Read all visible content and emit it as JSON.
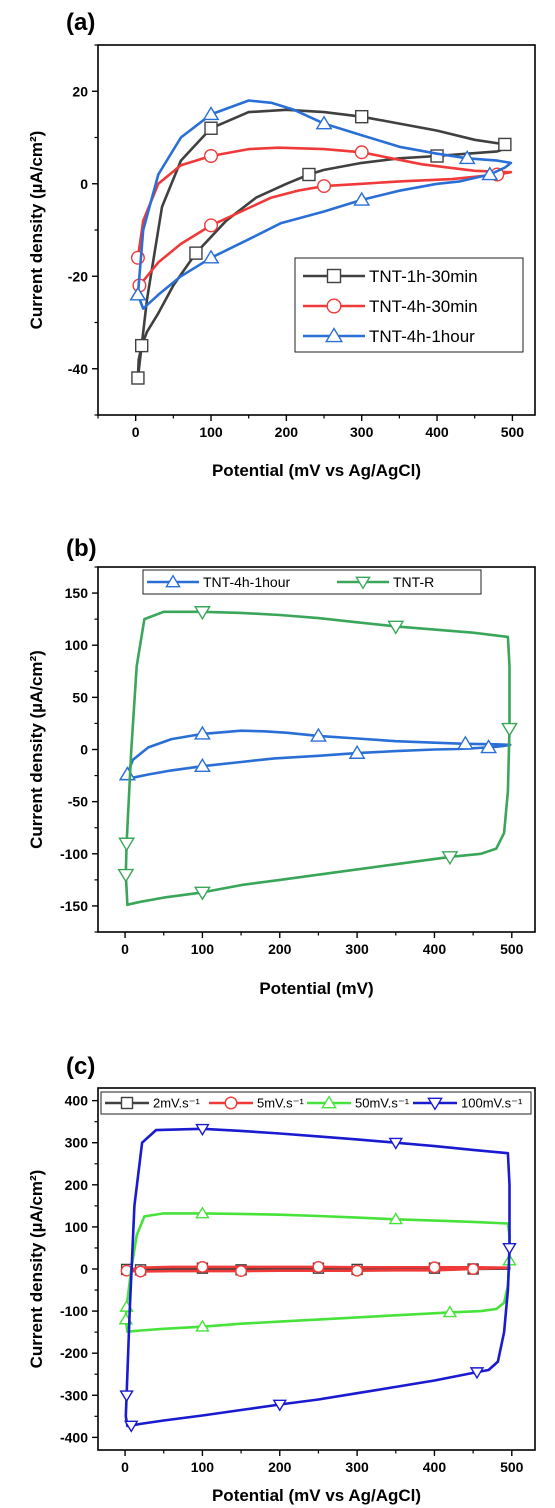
{
  "chart_data": [
    {
      "panel": "(a)",
      "type": "line",
      "xlabel": "Potential (mV vs Ag/AgCl)",
      "ylabel": "Current density (µA/cm²)",
      "xlim": [
        -50,
        530
      ],
      "ylim": [
        -50,
        30
      ],
      "xticks": [
        0,
        100,
        200,
        300,
        400,
        500
      ],
      "yticks": [
        -40,
        -20,
        0,
        20
      ],
      "legend_position": "bottom-right",
      "series": [
        {
          "name": "TNT-1h-30min",
          "color": "#404040",
          "marker": "square",
          "x": [
            3,
            15,
            35,
            60,
            100,
            150,
            200,
            250,
            300,
            350,
            400,
            450,
            490,
            497,
            480,
            440,
            400,
            350,
            300,
            250,
            230,
            200,
            160,
            120,
            80,
            50,
            30,
            15,
            8,
            4,
            3
          ],
          "y": [
            -42,
            -25,
            -5,
            5,
            12,
            15.5,
            16,
            15.5,
            14.5,
            13,
            11.5,
            9.5,
            8.5,
            8,
            7,
            6.5,
            6,
            5.5,
            4.5,
            3,
            2,
            0,
            -3,
            -8,
            -15,
            -22,
            -28,
            -32,
            -35,
            -38,
            -42
          ]
        },
        {
          "name": "TNT-4h-30min",
          "color": "#f03a3a",
          "marker": "circle",
          "x": [
            3,
            10,
            30,
            60,
            100,
            150,
            190,
            250,
            300,
            380,
            450,
            498,
            480,
            420,
            350,
            300,
            250,
            215,
            180,
            140,
            100,
            60,
            30,
            15,
            5
          ],
          "y": [
            -16,
            -8,
            0,
            4,
            6,
            7.5,
            7.8,
            7.5,
            6.8,
            4.2,
            2.8,
            2.5,
            2,
            1,
            0.5,
            0,
            -0.5,
            -1.5,
            -3,
            -6,
            -9,
            -13,
            -17,
            -20,
            -22
          ]
        },
        {
          "name": "TNT-4h-1hour",
          "color": "#2a6fd6",
          "marker": "triangle-up",
          "x": [
            3,
            10,
            30,
            60,
            100,
            150,
            180,
            210,
            250,
            300,
            350,
            400,
            440,
            480,
            498,
            490,
            470,
            430,
            400,
            350,
            300,
            250,
            193,
            150,
            100,
            60,
            30,
            10,
            3
          ],
          "y": [
            -24,
            -10,
            2,
            10,
            15,
            18,
            17.5,
            16,
            13,
            10.5,
            8,
            6.5,
            5.5,
            5,
            4.5,
            3.5,
            2,
            0.5,
            0,
            -1.5,
            -3.5,
            -6,
            -8.5,
            -12,
            -16,
            -20,
            -24,
            -27,
            -24
          ]
        }
      ]
    },
    {
      "panel": "(b)",
      "type": "line",
      "xlabel": "Potential (mV)",
      "ylabel": "Current density (µA/cm²)",
      "xlim": [
        -35,
        530
      ],
      "ylim": [
        -175,
        175
      ],
      "xticks": [
        0,
        100,
        200,
        300,
        400,
        500
      ],
      "yticks": [
        -150,
        -100,
        -50,
        0,
        50,
        100,
        150
      ],
      "legend_position": "top",
      "series": [
        {
          "name": "TNT-4h-1hour",
          "color": "#2a6fd6",
          "marker": "triangle-up",
          "x": [
            3,
            10,
            30,
            60,
            100,
            150,
            180,
            210,
            250,
            300,
            350,
            400,
            440,
            480,
            498,
            490,
            470,
            430,
            400,
            350,
            300,
            250,
            193,
            150,
            100,
            60,
            30,
            10,
            3
          ],
          "y": [
            -24,
            -10,
            2,
            10,
            15,
            18,
            17.5,
            16,
            13,
            10.5,
            8,
            6.5,
            5.5,
            5,
            4.5,
            3.5,
            2,
            0.5,
            0,
            -1.5,
            -3.5,
            -6,
            -8.5,
            -12,
            -16,
            -20,
            -24,
            -27,
            -24
          ]
        },
        {
          "name": "TNT-R",
          "color": "#3aa65a",
          "marker": "triangle-down",
          "x": [
            2,
            8,
            15,
            25,
            50,
            100,
            150,
            200,
            250,
            300,
            350,
            400,
            450,
            495,
            497,
            497,
            495,
            490,
            480,
            460,
            420,
            350,
            270,
            200,
            150,
            100,
            50,
            20,
            8,
            3,
            1,
            2
          ],
          "y": [
            -90,
            0,
            80,
            125,
            132,
            132,
            131,
            129,
            126,
            122,
            118,
            115,
            112,
            108,
            80,
            20,
            -40,
            -80,
            -95,
            -100,
            -103,
            -110,
            -118,
            -125,
            -130,
            -137,
            -142,
            -146,
            -148,
            -149,
            -120,
            -90
          ]
        }
      ]
    },
    {
      "panel": "(c)",
      "type": "line",
      "xlabel": "Potential (mV vs Ag/AgCl)",
      "ylabel": "Current density (µA/cm²)",
      "xlim": [
        -35,
        530
      ],
      "ylim": [
        -430,
        430
      ],
      "xticks": [
        0,
        100,
        200,
        300,
        400,
        500
      ],
      "yticks": [
        -400,
        -300,
        -200,
        -100,
        0,
        100,
        200,
        300,
        400
      ],
      "legend_position": "top",
      "series": [
        {
          "name": "2mV.s⁻¹",
          "color": "#404040",
          "marker": "square",
          "x": [
            2,
            20,
            60,
            100,
            150,
            200,
            250,
            300,
            350,
            400,
            450,
            497,
            450,
            400,
            350,
            300,
            250,
            200,
            150,
            100,
            60,
            20,
            2
          ],
          "y": [
            -1,
            1,
            2,
            2,
            2,
            2,
            2,
            2,
            2,
            2,
            2,
            1,
            0,
            -1,
            -1,
            -1,
            -1,
            -1,
            -2,
            -2,
            -2,
            -2,
            -1
          ]
        },
        {
          "name": "5mV.s⁻¹",
          "color": "#f03a3a",
          "marker": "circle",
          "x": [
            2,
            20,
            60,
            100,
            150,
            200,
            250,
            300,
            350,
            400,
            450,
            497,
            450,
            400,
            350,
            300,
            250,
            200,
            150,
            100,
            60,
            20,
            2
          ],
          "y": [
            -4,
            3,
            5,
            5,
            5,
            5,
            5,
            4,
            4,
            4,
            4,
            3,
            0,
            -3,
            -3,
            -4,
            -4,
            -4,
            -5,
            -5,
            -5,
            -6,
            -4
          ]
        },
        {
          "name": "50mV.s⁻¹",
          "color": "#47e23a",
          "marker": "triangle-up",
          "x": [
            2,
            8,
            15,
            25,
            50,
            100,
            150,
            200,
            250,
            300,
            350,
            400,
            450,
            495,
            497,
            497,
            495,
            490,
            480,
            460,
            420,
            350,
            270,
            200,
            150,
            100,
            50,
            20,
            8,
            3,
            1,
            2
          ],
          "y": [
            -90,
            0,
            80,
            125,
            132,
            132,
            131,
            129,
            126,
            122,
            118,
            115,
            112,
            108,
            80,
            20,
            -40,
            -80,
            -95,
            -100,
            -103,
            -110,
            -118,
            -125,
            -130,
            -137,
            -142,
            -146,
            -148,
            -149,
            -120,
            -90
          ]
        },
        {
          "name": "100mV.s⁻¹",
          "color": "#1a1ad0",
          "marker": "triangle-down",
          "x": [
            2,
            6,
            12,
            22,
            40,
            100,
            150,
            200,
            250,
            300,
            350,
            400,
            450,
            495,
            497,
            497,
            495,
            490,
            482,
            470,
            455,
            400,
            350,
            300,
            250,
            200,
            150,
            100,
            50,
            20,
            8,
            3,
            1,
            2
          ],
          "y": [
            -300,
            -100,
            150,
            300,
            330,
            333,
            328,
            322,
            315,
            308,
            300,
            292,
            283,
            275,
            200,
            50,
            -50,
            -150,
            -220,
            -240,
            -245,
            -265,
            -280,
            -295,
            -310,
            -322,
            -335,
            -348,
            -360,
            -368,
            -372,
            -373,
            -350,
            -300
          ]
        }
      ]
    }
  ],
  "panels": {
    "a": {
      "label": "(a)"
    },
    "b": {
      "label": "(b)"
    },
    "c": {
      "label": "(c)"
    }
  },
  "colors": {
    "axis": "#000000",
    "background": "#ffffff"
  }
}
